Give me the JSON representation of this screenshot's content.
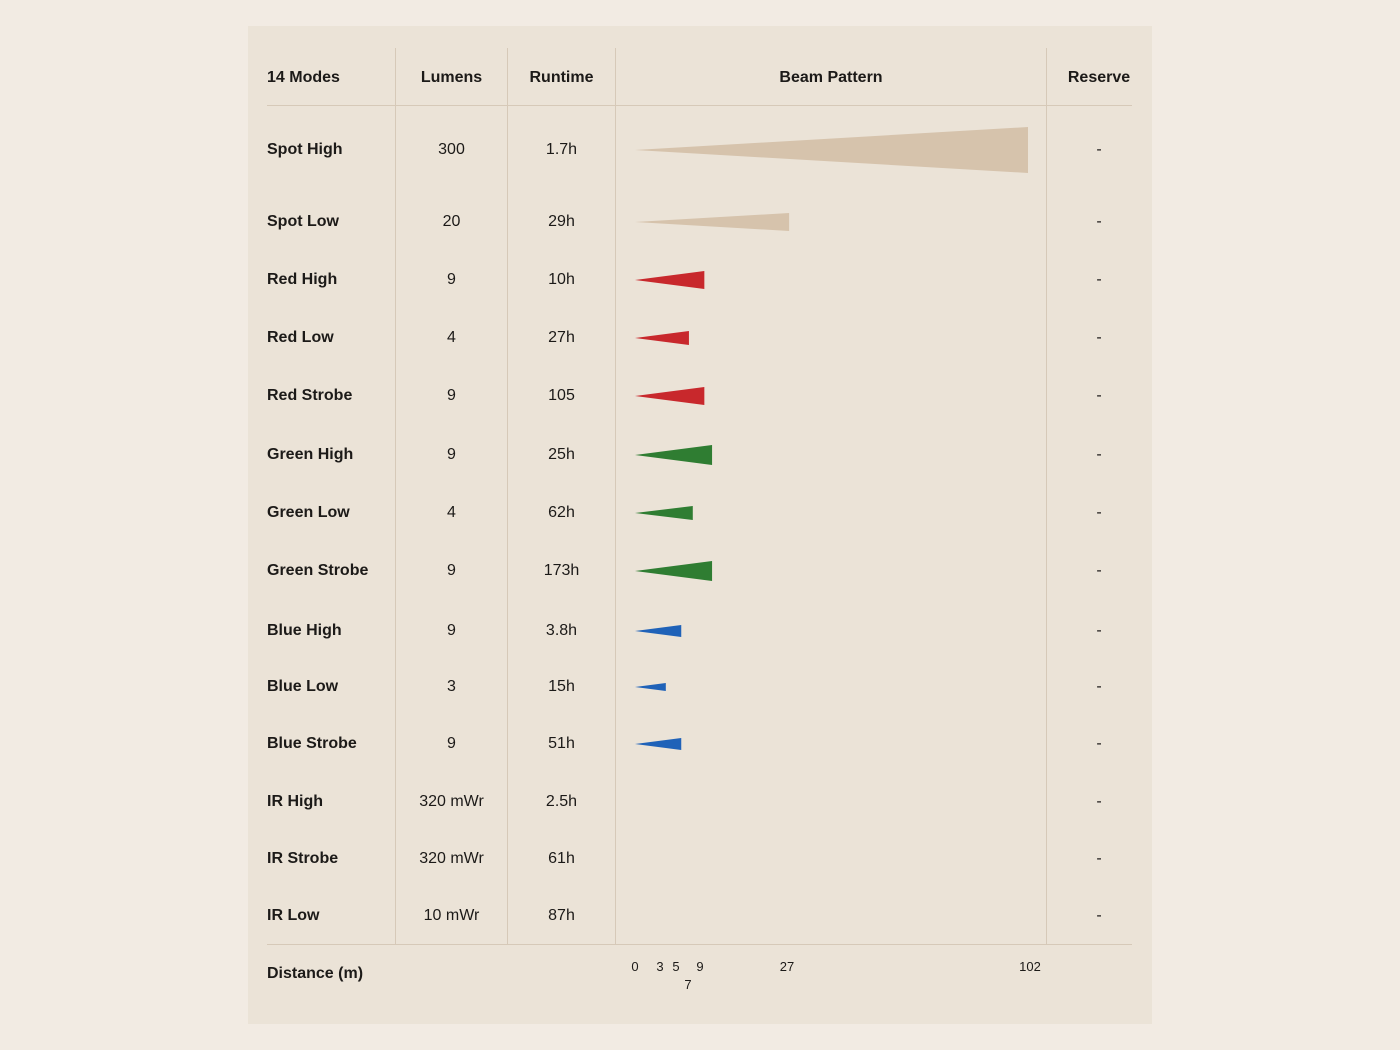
{
  "headers": {
    "modes": "14 Modes",
    "lumens": "Lumens",
    "runtime": "Runtime",
    "beam": "Beam Pattern",
    "reserve": "Reserve"
  },
  "footer": {
    "distance_label": "Distance (m)"
  },
  "colors": {
    "spot": "#d6c3ac",
    "red": "#c8282c",
    "green": "#2f7d32",
    "blue": "#1f62b8",
    "divider": "#d6c9b8"
  },
  "chart_data": {
    "type": "bar",
    "xlabel": "Distance (m)",
    "xlim": [
      0,
      102
    ],
    "x_ticks": [
      {
        "value": 0,
        "label": "0",
        "row": 0
      },
      {
        "value": 3,
        "label": "3",
        "row": 0
      },
      {
        "value": 5,
        "label": "5",
        "row": 0
      },
      {
        "value": 7,
        "label": "7",
        "row": 1
      },
      {
        "value": 9,
        "label": "9",
        "row": 0
      },
      {
        "value": 27,
        "label": "27",
        "row": 0
      },
      {
        "value": 102,
        "label": "102",
        "row": 0
      }
    ],
    "rows": [
      {
        "mode": "Spot High",
        "lumens": "300",
        "runtime": "1.7h",
        "reserve": "-",
        "color": "spot",
        "distance": 102
      },
      {
        "mode": "Spot Low",
        "lumens": "20",
        "runtime": "29h",
        "reserve": "-",
        "color": "spot",
        "distance": 40
      },
      {
        "mode": "Red High",
        "lumens": "9",
        "runtime": "10h",
        "reserve": "-",
        "color": "red",
        "distance": 18
      },
      {
        "mode": "Red Low",
        "lumens": "4",
        "runtime": "27h",
        "reserve": "-",
        "color": "red",
        "distance": 14
      },
      {
        "mode": "Red Strobe",
        "lumens": "9",
        "runtime": "105",
        "reserve": "-",
        "color": "red",
        "distance": 18
      },
      {
        "mode": "Green High",
        "lumens": "9",
        "runtime": "25h",
        "reserve": "-",
        "color": "green",
        "distance": 20
      },
      {
        "mode": "Green Low",
        "lumens": "4",
        "runtime": "62h",
        "reserve": "-",
        "color": "green",
        "distance": 15
      },
      {
        "mode": "Green Strobe",
        "lumens": "9",
        "runtime": "173h",
        "reserve": "-",
        "color": "green",
        "distance": 20
      },
      {
        "mode": "Blue High",
        "lumens": "9",
        "runtime": "3.8h",
        "reserve": "-",
        "color": "blue",
        "distance": 12
      },
      {
        "mode": "Blue Low",
        "lumens": "3",
        "runtime": "15h",
        "reserve": "-",
        "color": "blue",
        "distance": 8
      },
      {
        "mode": "Blue Strobe",
        "lumens": "9",
        "runtime": "51h",
        "reserve": "-",
        "color": "blue",
        "distance": 12
      },
      {
        "mode": "IR High",
        "lumens": "320 mWr",
        "runtime": "2.5h",
        "reserve": "-",
        "color": "none",
        "distance": 0
      },
      {
        "mode": "IR Strobe",
        "lumens": "320 mWr",
        "runtime": "61h",
        "reserve": "-",
        "color": "none",
        "distance": 0
      },
      {
        "mode": "IR Low",
        "lumens": "10 mWr",
        "runtime": "87h",
        "reserve": "-",
        "color": "none",
        "distance": 0
      }
    ]
  }
}
